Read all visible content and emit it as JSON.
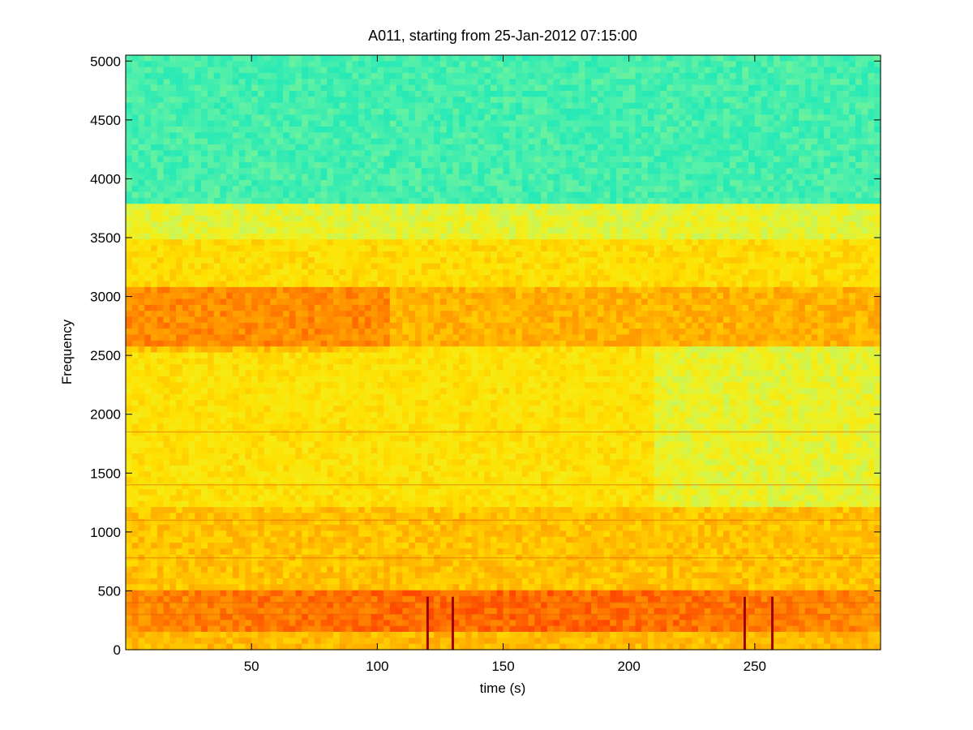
{
  "chart_data": {
    "type": "heatmap",
    "title": "A011, starting from 25-Jan-2012 07:15:00",
    "xlabel": "time (s)",
    "ylabel": "Frequency",
    "xlim": [
      0,
      300
    ],
    "ylim": [
      0,
      5050
    ],
    "x_ticks": [
      50,
      100,
      150,
      200,
      250
    ],
    "y_ticks": [
      0,
      500,
      1000,
      1500,
      2000,
      2500,
      3000,
      3500,
      4000,
      4500,
      5000
    ],
    "grid": false,
    "legend": "none",
    "colormap": [
      "#20e8b8",
      "#58f0a8",
      "#b8f870",
      "#f0f020",
      "#ffe000",
      "#ffb000",
      "#ff8000",
      "#ff4000",
      "#c00000"
    ],
    "intensity_bands": [
      {
        "freq_min": 3800,
        "freq_max": 5050,
        "level": 0.08
      },
      {
        "freq_min": 3500,
        "freq_max": 3800,
        "level": 0.35
      },
      {
        "freq_min": 3100,
        "freq_max": 3500,
        "level": 0.5
      },
      {
        "freq_min": 2600,
        "freq_max": 3100,
        "level": 0.62
      },
      {
        "freq_min": 1200,
        "freq_max": 2600,
        "level": 0.48
      },
      {
        "freq_min": 500,
        "freq_max": 1200,
        "level": 0.58
      },
      {
        "freq_min": 150,
        "freq_max": 500,
        "level": 0.72
      },
      {
        "freq_min": 0,
        "freq_max": 150,
        "level": 0.6
      }
    ],
    "tonal_lines_hz": [
      300,
      400,
      780,
      1100,
      1400,
      1850
    ],
    "transients_s": [
      120,
      130,
      246,
      257
    ]
  }
}
